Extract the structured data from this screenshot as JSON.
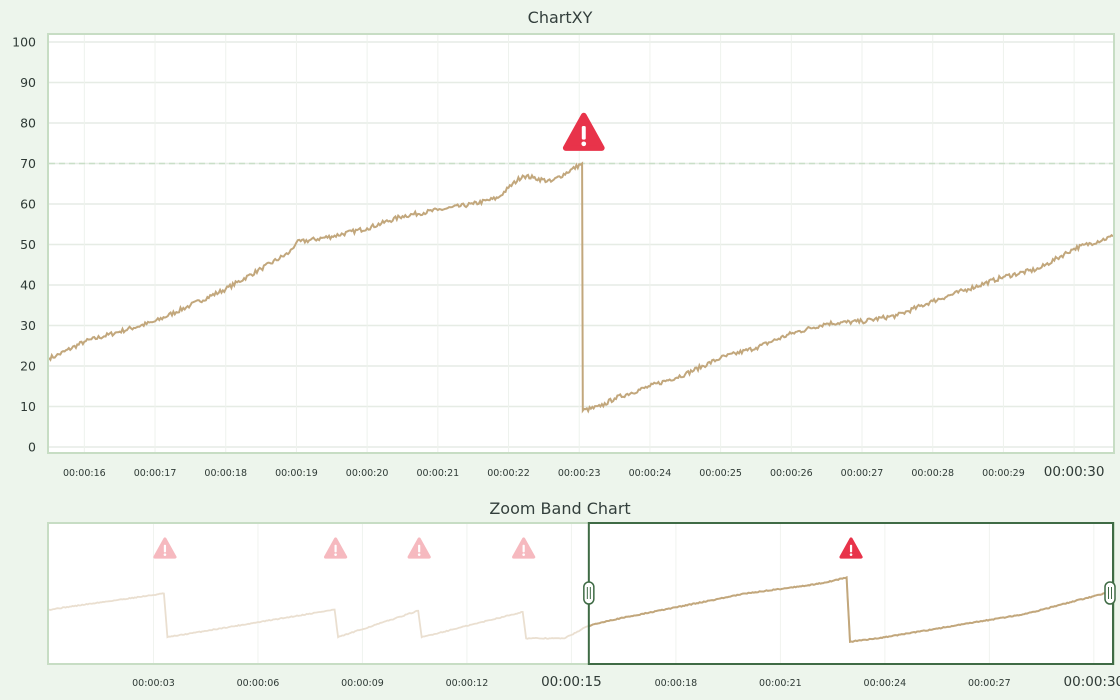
{
  "chart_data": [
    {
      "type": "line",
      "title": "ChartXY",
      "xlabel": "",
      "ylabel": "",
      "ylim": [
        0,
        100
      ],
      "y_ticks": [
        "0",
        "10",
        "20",
        "30",
        "40",
        "50",
        "60",
        "70",
        "80",
        "90",
        "100"
      ],
      "x_tick_labels": [
        "00:00:16",
        "00:00:17",
        "00:00:18",
        "00:00:19",
        "00:00:20",
        "00:00:21",
        "00:00:22",
        "00:00:23",
        "00:00:24",
        "00:00:25",
        "00:00:26",
        "00:00:27",
        "00:00:28",
        "00:00:29",
        "00:00:30"
      ],
      "threshold": 70,
      "grid": true,
      "colors": {
        "line": "#c2a77c",
        "alert": "#e8334a",
        "threshold": "#c9dfc7"
      },
      "series": [
        {
          "x": [
            15.5,
            15.6,
            16.0,
            16.5,
            17.0,
            17.5,
            18.0,
            18.5,
            18.9,
            19.0,
            19.5,
            20.0,
            20.5,
            21.0,
            21.5,
            21.85,
            22.0,
            22.2,
            22.35,
            22.6,
            23.04,
            23.05,
            23.3,
            23.5,
            24.0,
            24.5,
            25.0,
            25.5,
            26.0,
            26.5,
            27.0,
            27.5,
            28.0,
            28.5,
            29.0,
            29.5,
            30.0,
            30.55
          ],
          "y": [
            22,
            22.5,
            26,
            28.5,
            31,
            35,
            39,
            44,
            48,
            50.5,
            52,
            54,
            57,
            58.5,
            60,
            61.5,
            64,
            67,
            66.5,
            65.5,
            70,
            9,
            10,
            12,
            15,
            18,
            22,
            24.5,
            28,
            30.5,
            31,
            32.5,
            36,
            39,
            42,
            44,
            49,
            52
          ]
        }
      ],
      "alerts": [
        23.05
      ]
    },
    {
      "type": "line",
      "title": "Zoom Band Chart",
      "xlabel": "",
      "ylabel": "",
      "x_tick_labels": [
        "00:00:03",
        "00:00:06",
        "00:00:09",
        "00:00:12",
        "00:00:15",
        "00:00:18",
        "00:00:21",
        "00:00:24",
        "00:00:27",
        "00:00:30"
      ],
      "selected_range": [
        "00:00:15.5",
        "00:00:30.55"
      ],
      "series": [
        {
          "x": [
            0,
            3.3,
            3.4,
            8.2,
            8.3,
            10.6,
            10.7,
            13.6,
            13.7,
            14.8,
            15.5,
            16.0,
            18.0,
            20.0,
            22.0,
            22.5,
            22.9,
            23.0,
            24.0,
            26.0,
            28.0,
            30.55
          ],
          "y": [
            36,
            50,
            12,
            36,
            12,
            35,
            12,
            34,
            11,
            11,
            22,
            26,
            38,
            50,
            58,
            61,
            64,
            8,
            12,
            22,
            32,
            52
          ]
        }
      ],
      "alerts": [
        3.3,
        8.2,
        10.6,
        13.6,
        23.0
      ]
    }
  ]
}
